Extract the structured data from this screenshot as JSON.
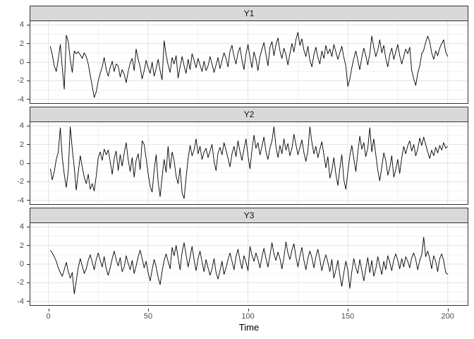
{
  "chart_data": {
    "type": "line",
    "title": "",
    "xlabel": "Time",
    "ylabel": "",
    "legend": "none",
    "grid": true,
    "facet_layout": "rows",
    "x_start": 1,
    "x_step": 1,
    "x_ticks": [
      0,
      50,
      100,
      150,
      200
    ],
    "x_minor_ticks": [
      25,
      75,
      125,
      175
    ],
    "y_ticks": [
      4,
      2,
      0,
      -2,
      -4
    ],
    "y_minor_ticks": [
      3,
      1,
      -1,
      -3
    ],
    "xlim": [
      -9,
      210
    ],
    "ylim": [
      -4.4,
      4.4
    ],
    "line_color": "#000000",
    "colors": {
      "strip_bg": "#d9d9d9",
      "panel_bg": "#ffffff",
      "panel_border": "#333333",
      "grid_major": "#e2e2e2",
      "grid_minor": "#f1f1f1",
      "tick_text": "#4d4d4d",
      "axis_title": "#000000"
    },
    "facets": [
      {
        "label": "Y1",
        "values": [
          1.7,
          0.8,
          -0.4,
          -1.0,
          0.3,
          1.9,
          -0.6,
          -2.9,
          2.9,
          2.2,
          0.3,
          -1.1,
          1.2,
          0.9,
          1.1,
          0.8,
          0.4,
          1.0,
          0.6,
          -0.2,
          -1.4,
          -2.6,
          -3.8,
          -3.2,
          -2.0,
          -1.2,
          -0.5,
          0.5,
          -0.8,
          -1.5,
          -0.6,
          0.1,
          -1.0,
          -0.2,
          -0.4,
          -1.6,
          -0.8,
          -1.3,
          -2.2,
          -1.0,
          -0.1,
          0.4,
          -0.9,
          1.4,
          0.3,
          -0.5,
          -1.8,
          -0.9,
          0.2,
          -0.6,
          -1.2,
          0.0,
          -1.5,
          -0.7,
          0.3,
          -0.9,
          -1.9,
          2.3,
          0.8,
          -0.3,
          -1.1,
          0.5,
          -0.2,
          0.7,
          -1.7,
          -0.5,
          0.6,
          -0.4,
          -1.2,
          0.3,
          -0.8,
          0.9,
          0.2,
          -0.6,
          0.4,
          -0.3,
          -1.0,
          0.1,
          -0.9,
          -0.4,
          0.6,
          -0.2,
          -1.1,
          -0.3,
          0.5,
          -0.7,
          0.2,
          1.0,
          0.4,
          -0.5,
          1.2,
          1.8,
          0.6,
          -0.2,
          1.0,
          1.6,
          0.2,
          -0.8,
          0.9,
          1.9,
          0.5,
          -0.6,
          1.1,
          0.3,
          -0.9,
          0.6,
          1.4,
          2.1,
          0.8,
          -0.4,
          1.6,
          2.2,
          0.7,
          1.9,
          2.6,
          1.2,
          0.4,
          1.5,
          0.8,
          -0.3,
          0.9,
          2.0,
          1.1,
          2.4,
          3.2,
          1.8,
          2.5,
          1.3,
          0.6,
          1.7,
          0.2,
          -0.5,
          0.8,
          1.6,
          0.5,
          -0.2,
          1.2,
          0.4,
          1.8,
          0.9,
          1.4,
          0.6,
          1.9,
          1.1,
          0.3,
          1.0,
          1.7,
          0.5,
          -0.4,
          -2.6,
          -1.8,
          -0.6,
          0.4,
          1.2,
          0.2,
          -0.8,
          0.5,
          1.5,
          0.7,
          -0.3,
          0.9,
          2.8,
          1.6,
          0.6,
          1.3,
          2.4,
          1.0,
          1.8,
          0.4,
          -0.5,
          0.8,
          1.5,
          0.3,
          1.1,
          1.9,
          0.7,
          -0.2,
          0.6,
          1.4,
          0.9,
          1.6,
          -0.9,
          -1.8,
          -2.5,
          -1.2,
          -0.4,
          0.9,
          1.3,
          2.1,
          2.8,
          2.2,
          1.0,
          0.3,
          1.2,
          0.7,
          1.5,
          2.0,
          2.4,
          1.1,
          0.6
        ]
      },
      {
        "label": "Y2",
        "values": [
          -0.6,
          -1.8,
          -0.9,
          0.4,
          1.2,
          3.8,
          0.6,
          -1.2,
          -2.6,
          -0.8,
          3.9,
          1.5,
          -0.5,
          -2.9,
          -1.0,
          0.8,
          -0.4,
          -1.5,
          -2.2,
          -1.2,
          -2.8,
          -2.2,
          -3.0,
          -1.4,
          0.6,
          1.2,
          0.3,
          1.5,
          0.9,
          1.4,
          0.2,
          -1.2,
          0.5,
          1.3,
          -0.8,
          0.9,
          -0.3,
          1.1,
          2.2,
          0.4,
          -0.9,
          0.6,
          -1.5,
          0.3,
          1.0,
          -0.7,
          2.4,
          2.0,
          0.5,
          -1.1,
          -2.5,
          -3.1,
          -0.8,
          0.9,
          -2.0,
          -3.6,
          -1.5,
          0.4,
          -1.0,
          1.8,
          -0.6,
          1.2,
          0.3,
          -1.4,
          -2.2,
          -0.5,
          -3.2,
          -3.8,
          -1.6,
          0.5,
          1.9,
          0.8,
          1.4,
          2.6,
          1.0,
          1.8,
          0.4,
          1.2,
          1.6,
          0.6,
          1.3,
          2.0,
          0.2,
          -0.8,
          1.1,
          1.7,
          0.9,
          2.2,
          1.4,
          0.5,
          -0.4,
          1.0,
          1.8,
          0.7,
          2.4,
          1.2,
          0.3,
          1.5,
          2.6,
          0.8,
          -0.6,
          1.4,
          3.0,
          1.6,
          2.2,
          0.9,
          1.8,
          2.8,
          1.2,
          0.4,
          1.6,
          2.4,
          3.9,
          1.8,
          0.6,
          1.9,
          1.0,
          2.6,
          1.4,
          2.1,
          0.8,
          1.6,
          3.1,
          2.0,
          0.9,
          1.7,
          2.5,
          1.1,
          0.2,
          1.3,
          3.9,
          2.2,
          1.0,
          1.8,
          0.6,
          1.5,
          2.3,
          0.9,
          -0.5,
          0.7,
          -1.6,
          -0.8,
          0.6,
          -1.2,
          -2.4,
          -0.6,
          0.9,
          -1.8,
          -2.8,
          -1.0,
          0.8,
          1.9,
          0.5,
          -0.9,
          1.2,
          2.9,
          1.5,
          2.2,
          0.7,
          1.6,
          3.8,
          1.2,
          2.6,
          0.9,
          -0.8,
          -1.9,
          -0.4,
          1.1,
          0.3,
          -1.3,
          -0.5,
          0.8,
          -1.5,
          -0.7,
          0.4,
          -1.1,
          0.6,
          1.8,
          1.0,
          1.9,
          2.4,
          1.3,
          2.0,
          0.8,
          1.5,
          2.7,
          1.9,
          2.8,
          2.0,
          1.2,
          0.5,
          1.4,
          0.8,
          1.7,
          1.1,
          1.9,
          1.4,
          2.2,
          1.6,
          1.8
        ]
      },
      {
        "label": "Y3",
        "values": [
          1.5,
          1.2,
          0.8,
          0.3,
          -0.4,
          -0.9,
          -1.3,
          -0.6,
          0.2,
          -0.8,
          -1.5,
          -0.9,
          -3.2,
          -1.8,
          -0.4,
          0.6,
          -0.2,
          -1.0,
          -0.5,
          0.4,
          1.0,
          0.2,
          -0.6,
          0.5,
          1.2,
          0.4,
          -0.3,
          0.8,
          -0.5,
          -1.2,
          -0.4,
          0.6,
          1.4,
          0.5,
          -0.2,
          0.7,
          -0.8,
          -0.3,
          0.9,
          0.1,
          -0.6,
          0.4,
          -1.0,
          -0.2,
          0.8,
          1.5,
          0.6,
          -0.4,
          0.3,
          -0.9,
          -1.8,
          -0.6,
          0.5,
          -0.3,
          -1.4,
          -2.2,
          -0.8,
          0.4,
          1.1,
          0.3,
          -0.5,
          1.8,
          0.9,
          2.0,
          0.7,
          -0.6,
          1.3,
          2.3,
          1.0,
          -0.3,
          0.8,
          1.9,
          0.5,
          -0.7,
          0.6,
          1.4,
          0.2,
          -0.8,
          0.5,
          -0.4,
          -1.2,
          -0.5,
          0.6,
          -0.9,
          -1.6,
          -0.7,
          0.3,
          -1.1,
          -0.4,
          0.5,
          1.2,
          0.3,
          -0.6,
          0.8,
          1.6,
          0.4,
          -0.5,
          0.9,
          0.2,
          -0.7,
          1.9,
          1.0,
          0.3,
          1.2,
          0.5,
          -0.4,
          0.8,
          1.7,
          0.6,
          -0.3,
          0.9,
          2.3,
          1.1,
          0.4,
          1.3,
          0.6,
          -0.5,
          0.7,
          2.4,
          1.2,
          0.5,
          1.5,
          2.2,
          0.8,
          -0.3,
          0.9,
          1.8,
          0.4,
          -0.6,
          0.6,
          1.4,
          0.7,
          -0.4,
          0.8,
          1.6,
          0.5,
          -0.7,
          0.3,
          1.0,
          0.2,
          -0.8,
          0.5,
          -1.5,
          -0.6,
          0.4,
          -1.2,
          -2.4,
          -0.9,
          0.3,
          -0.6,
          -2.6,
          -0.8,
          0.6,
          -0.4,
          -1.0,
          0.5,
          -0.7,
          -1.8,
          -0.5,
          0.7,
          -0.9,
          0.4,
          -1.3,
          -0.5,
          0.8,
          -0.2,
          -1.1,
          0.3,
          -0.6,
          0.9,
          0.2,
          -0.7,
          0.5,
          1.1,
          0.4,
          -0.5,
          0.6,
          -0.3,
          0.8,
          0.3,
          -0.4,
          0.7,
          1.2,
          0.5,
          -0.6,
          0.4,
          1.0,
          2.9,
          0.8,
          1.4,
          0.6,
          -0.5,
          0.9,
          0.3,
          -0.8,
          0.6,
          1.1,
          0.4,
          -0.9,
          -1.1
        ]
      }
    ]
  }
}
